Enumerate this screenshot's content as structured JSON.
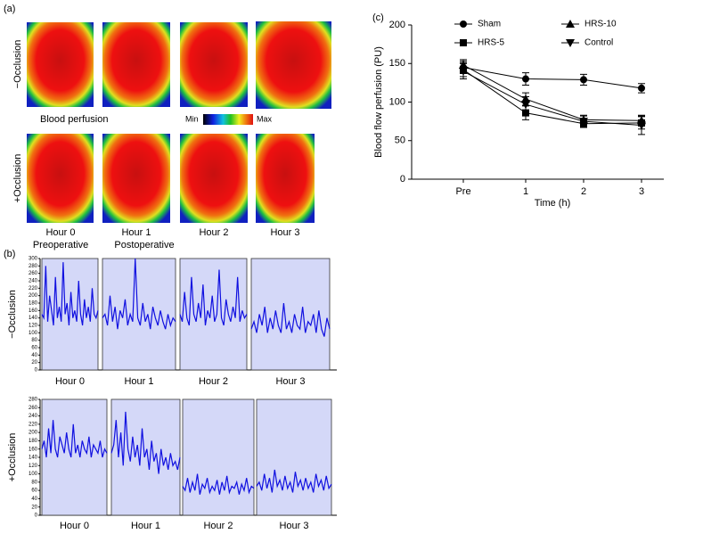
{
  "panel_a": {
    "label": "(a)",
    "row_labels": [
      "−Occlusion",
      "+Occlusion"
    ],
    "legend_title": "Blood perfusion",
    "min_label": "Min",
    "max_label": "Max",
    "columns": [
      {
        "title": "Hour 0",
        "subtitle": "Preoperative"
      },
      {
        "title": "Hour 1",
        "subtitle": "Postoperative"
      },
      {
        "title": "Hour 2"
      },
      {
        "title": "Hour 3"
      }
    ]
  },
  "panel_b_label": "(b)",
  "panel_c_label": "(c)",
  "chart_data": [
    {
      "type": "trace",
      "ylabel": "−Occlusion",
      "color": "#1010e0",
      "ylim": [
        0,
        300
      ],
      "yticks": [
        0,
        20,
        40,
        60,
        80,
        100,
        120,
        140,
        160,
        180,
        200,
        220,
        240,
        260,
        280,
        300
      ],
      "categories": [
        "Hour 0",
        "Hour 1",
        "Hour 2",
        "Hour 3"
      ],
      "segments": [
        [
          150,
          140,
          280,
          130,
          200,
          160,
          120,
          250,
          140,
          170,
          130,
          290,
          150,
          180,
          120,
          210,
          140,
          160,
          130,
          240,
          150,
          120,
          190,
          140,
          170,
          130,
          220,
          150,
          140,
          160
        ],
        [
          140,
          150,
          120,
          200,
          130,
          170,
          110,
          160,
          140,
          190,
          120,
          150,
          130,
          300,
          140,
          120,
          180,
          130,
          150,
          110,
          170,
          140,
          120,
          160,
          130,
          110,
          150,
          120,
          140,
          130
        ],
        [
          150,
          130,
          210,
          140,
          120,
          250,
          150,
          130,
          180,
          140,
          230,
          120,
          160,
          140,
          200,
          130,
          150,
          270,
          140,
          120,
          190,
          150,
          130,
          170,
          140,
          250,
          130,
          160,
          140,
          150
        ],
        [
          110,
          130,
          100,
          150,
          120,
          170,
          100,
          140,
          110,
          160,
          120,
          100,
          180,
          110,
          130,
          100,
          150,
          120,
          110,
          170,
          100,
          130,
          120,
          150,
          100,
          160,
          110,
          90,
          140,
          110
        ]
      ]
    },
    {
      "type": "trace",
      "ylabel": "+Occlusion",
      "color": "#1010e0",
      "ylim": [
        0,
        280
      ],
      "yticks": [
        0,
        20,
        40,
        60,
        80,
        100,
        120,
        140,
        160,
        180,
        200,
        220,
        240,
        260,
        280
      ],
      "categories": [
        "Hour 0",
        "Hour 1",
        "Hour 2",
        "Hour 3"
      ],
      "segments": [
        [
          160,
          180,
          140,
          210,
          150,
          230,
          160,
          140,
          190,
          170,
          150,
          200,
          160,
          140,
          220,
          150,
          170,
          140,
          180,
          160,
          150,
          190,
          140,
          170,
          160,
          150,
          180,
          140,
          160,
          150
        ],
        [
          150,
          170,
          230,
          140,
          200,
          120,
          250,
          160,
          130,
          190,
          140,
          170,
          120,
          210,
          140,
          160,
          110,
          180,
          130,
          150,
          100,
          160,
          120,
          140,
          110,
          150,
          120,
          130,
          110,
          140
        ],
        [
          70,
          60,
          90,
          55,
          80,
          60,
          100,
          50,
          75,
          65,
          90,
          55,
          70,
          60,
          85,
          50,
          80,
          60,
          95,
          55,
          70,
          65,
          80,
          50,
          75,
          60,
          90,
          55,
          70,
          65
        ],
        [
          70,
          80,
          60,
          100,
          65,
          90,
          55,
          110,
          70,
          85,
          60,
          95,
          65,
          80,
          55,
          105,
          70,
          85,
          60,
          90,
          65,
          80,
          55,
          100,
          70,
          85,
          60,
          95,
          65,
          75
        ]
      ]
    },
    {
      "type": "line",
      "ylabel": "Blood flow perfusion (PU)",
      "xlabel": "Time (h)",
      "categories": [
        "Pre",
        "1",
        "2",
        "3"
      ],
      "ylim": [
        0,
        200
      ],
      "yticks": [
        0,
        50,
        100,
        150,
        200
      ],
      "series": [
        {
          "name": "Sham",
          "marker": "circle",
          "color": "#000000",
          "values": [
            145,
            130,
            129,
            118
          ],
          "errors": [
            8,
            8,
            7,
            6
          ]
        },
        {
          "name": "HRS-10",
          "marker": "triangle-up",
          "color": "#000000",
          "values": [
            148,
            104,
            77,
            76
          ],
          "errors": [
            7,
            8,
            6,
            7
          ]
        },
        {
          "name": "HRS-5",
          "marker": "square",
          "color": "#000000",
          "values": [
            142,
            86,
            72,
            73
          ],
          "errors": [
            9,
            9,
            5,
            8
          ]
        },
        {
          "name": "Control",
          "marker": "triangle-down",
          "color": "#000000",
          "values": [
            140,
            97,
            75,
            70
          ],
          "errors": [
            10,
            10,
            7,
            12
          ]
        }
      ]
    }
  ]
}
